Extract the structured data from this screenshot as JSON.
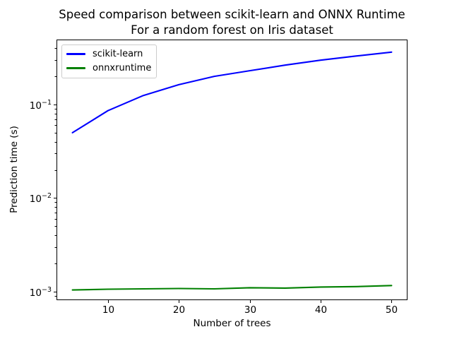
{
  "title": {
    "line1": "Speed comparison between scikit-learn and ONNX Runtime",
    "line2": "For a random forest on Iris dataset"
  },
  "chart_data": {
    "type": "line",
    "x": [
      5,
      10,
      15,
      20,
      25,
      30,
      35,
      40,
      45,
      50
    ],
    "series": [
      {
        "name": "scikit-learn",
        "color": "#0000ff",
        "values": [
          0.05,
          0.086,
          0.125,
          0.163,
          0.2,
          0.23,
          0.264,
          0.298,
          0.33,
          0.363
        ]
      },
      {
        "name": "onnxruntime",
        "color": "#008000",
        "values": [
          0.00104,
          0.00106,
          0.00107,
          0.00108,
          0.00107,
          0.0011,
          0.00109,
          0.00112,
          0.00113,
          0.00116
        ]
      }
    ],
    "xlabel": "Number of trees",
    "ylabel": "Prediction time (s)",
    "xlim": [
      2.75,
      52.25
    ],
    "ylim": [
      0.00081,
      0.495
    ],
    "yscale": "log",
    "xticks": [
      10,
      20,
      30,
      40,
      50
    ],
    "ytick_exponents": [
      -1,
      -2,
      -3
    ],
    "ytick_base": "10",
    "legend_position": "upper left",
    "grid": false
  },
  "colors": {
    "background": "#ffffff",
    "axis": "#000000",
    "text": "#000000",
    "legend_border": "#cccccc"
  }
}
